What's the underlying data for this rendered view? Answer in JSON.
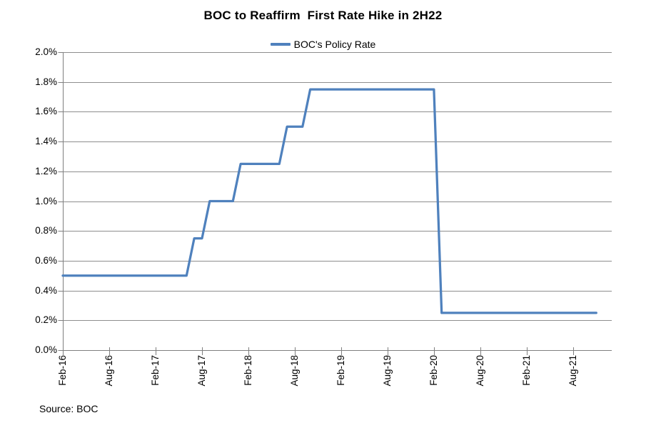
{
  "chart_data": {
    "type": "line",
    "title": "BOC to Reaffirm  First Rate Hike in 2H22",
    "source_label": "Source: BOC",
    "legend_position": "top-center",
    "grid": true,
    "ylim": [
      0,
      2.0
    ],
    "y_tick_step": 0.2,
    "y_tick_labels": [
      "0.0%",
      "0.2%",
      "0.4%",
      "0.6%",
      "0.8%",
      "1.0%",
      "1.2%",
      "1.4%",
      "1.6%",
      "1.8%",
      "2.0%"
    ],
    "x_axis_labels": [
      "Feb-16",
      "Aug-16",
      "Feb-17",
      "Aug-17",
      "Feb-18",
      "Aug-18",
      "Feb-19",
      "Aug-19",
      "Feb-20",
      "Aug-20",
      "Feb-21",
      "Aug-21"
    ],
    "x_tick_every": 6,
    "colors": {
      "line": "#4F81BD",
      "gridline": "#8E8E8E",
      "axis": "#7F7F7F",
      "text": "#000000",
      "background": "#FFFFFF"
    },
    "series": [
      {
        "name": "BOC's Policy Rate",
        "color": "#4F81BD",
        "x": [
          "Feb-16",
          "Mar-16",
          "Apr-16",
          "May-16",
          "Jun-16",
          "Jul-16",
          "Aug-16",
          "Sep-16",
          "Oct-16",
          "Nov-16",
          "Dec-16",
          "Jan-17",
          "Feb-17",
          "Mar-17",
          "Apr-17",
          "May-17",
          "Jun-17",
          "Jul-17",
          "Aug-17",
          "Sep-17",
          "Oct-17",
          "Nov-17",
          "Dec-17",
          "Jan-18",
          "Feb-18",
          "Mar-18",
          "Apr-18",
          "May-18",
          "Jun-18",
          "Jul-18",
          "Aug-18",
          "Sep-18",
          "Oct-18",
          "Nov-18",
          "Dec-18",
          "Jan-19",
          "Feb-19",
          "Mar-19",
          "Apr-19",
          "May-19",
          "Jun-19",
          "Jul-19",
          "Aug-19",
          "Sep-19",
          "Oct-19",
          "Nov-19",
          "Dec-19",
          "Jan-20",
          "Feb-20",
          "Mar-20",
          "Apr-20",
          "May-20",
          "Jun-20",
          "Jul-20",
          "Aug-20",
          "Sep-20",
          "Oct-20",
          "Nov-20",
          "Dec-20",
          "Jan-21",
          "Feb-21",
          "Mar-21",
          "Apr-21",
          "May-21",
          "Jun-21",
          "Jul-21",
          "Aug-21",
          "Sep-21",
          "Oct-21",
          "Nov-21"
        ],
        "values": [
          0.5,
          0.5,
          0.5,
          0.5,
          0.5,
          0.5,
          0.5,
          0.5,
          0.5,
          0.5,
          0.5,
          0.5,
          0.5,
          0.5,
          0.5,
          0.5,
          0.5,
          0.75,
          0.75,
          1.0,
          1.0,
          1.0,
          1.0,
          1.25,
          1.25,
          1.25,
          1.25,
          1.25,
          1.25,
          1.5,
          1.5,
          1.5,
          1.75,
          1.75,
          1.75,
          1.75,
          1.75,
          1.75,
          1.75,
          1.75,
          1.75,
          1.75,
          1.75,
          1.75,
          1.75,
          1.75,
          1.75,
          1.75,
          1.75,
          0.25,
          0.25,
          0.25,
          0.25,
          0.25,
          0.25,
          0.25,
          0.25,
          0.25,
          0.25,
          0.25,
          0.25,
          0.25,
          0.25,
          0.25,
          0.25,
          0.25,
          0.25,
          0.25,
          0.25,
          0.25
        ]
      }
    ]
  }
}
